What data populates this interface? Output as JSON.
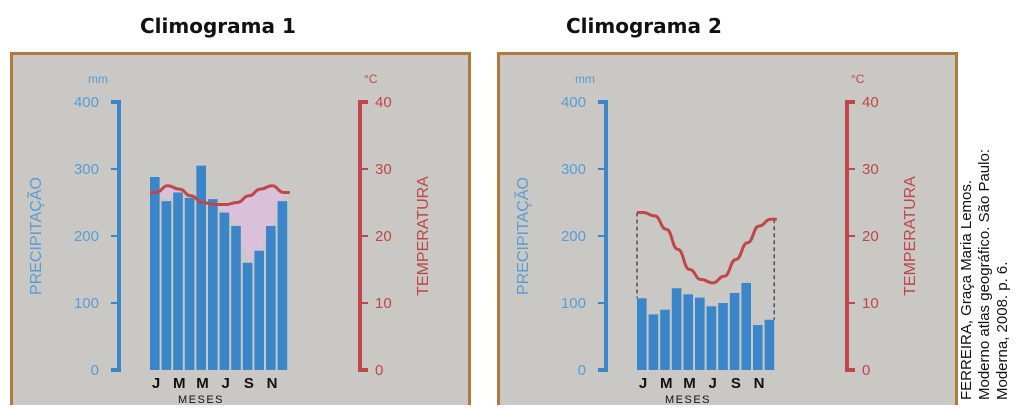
{
  "source": {
    "line1": "FERREIRA, Graça Maria Lemos.",
    "line2": "Moderno atlas geográfico. São Paulo:",
    "line3": "Moderna, 2008. p. 6."
  },
  "colors": {
    "precip": "#3a86c8",
    "temp": "#c0464a",
    "fill": "#dcc0dc",
    "axis_text": "#5a9cd4",
    "temp_text": "#c0464a"
  },
  "chart_data": [
    {
      "type": "bar",
      "title": "Climograma 1",
      "xlabel": "MESES",
      "ylabel": "PRECIPITAÇÃO",
      "y2label": "TEMPERATURA",
      "y_unit": "mm",
      "y2_unit": "°C",
      "ylim": [
        0,
        400
      ],
      "y2lim": [
        0,
        40
      ],
      "yticks": [
        "0",
        "100",
        "200",
        "300",
        "400"
      ],
      "y2ticks": [
        "0",
        "10",
        "20",
        "30",
        "40"
      ],
      "xticks": [
        "J",
        "M",
        "M",
        "J",
        "S",
        "N"
      ],
      "precipitation": [
        288,
        252,
        265,
        257,
        305,
        255,
        235,
        215,
        160,
        178,
        215,
        252
      ],
      "temperature": [
        26.5,
        27.5,
        27.0,
        26.0,
        25.0,
        24.7,
        24.7,
        25.0,
        26.0,
        27.0,
        27.5,
        26.5
      ]
    },
    {
      "type": "bar",
      "title": "Climograma 2",
      "xlabel": "MESES",
      "ylabel": "PRECIPITAÇÃO",
      "y2label": "TEMPERATURA",
      "y_unit": "mm",
      "y2_unit": "°C",
      "ylim": [
        0,
        400
      ],
      "y2lim": [
        0,
        40
      ],
      "yticks": [
        "0",
        "100",
        "200",
        "300",
        "400"
      ],
      "y2ticks": [
        "0",
        "10",
        "20",
        "30",
        "40"
      ],
      "xticks": [
        "J",
        "M",
        "M",
        "J",
        "S",
        "N"
      ],
      "precipitation": [
        107,
        83,
        90,
        122,
        113,
        108,
        95,
        100,
        115,
        130,
        67,
        75
      ],
      "temperature": [
        23.5,
        23.0,
        21.0,
        18.0,
        15.0,
        13.5,
        13.0,
        14.0,
        16.5,
        19.0,
        21.5,
        22.5
      ]
    }
  ]
}
